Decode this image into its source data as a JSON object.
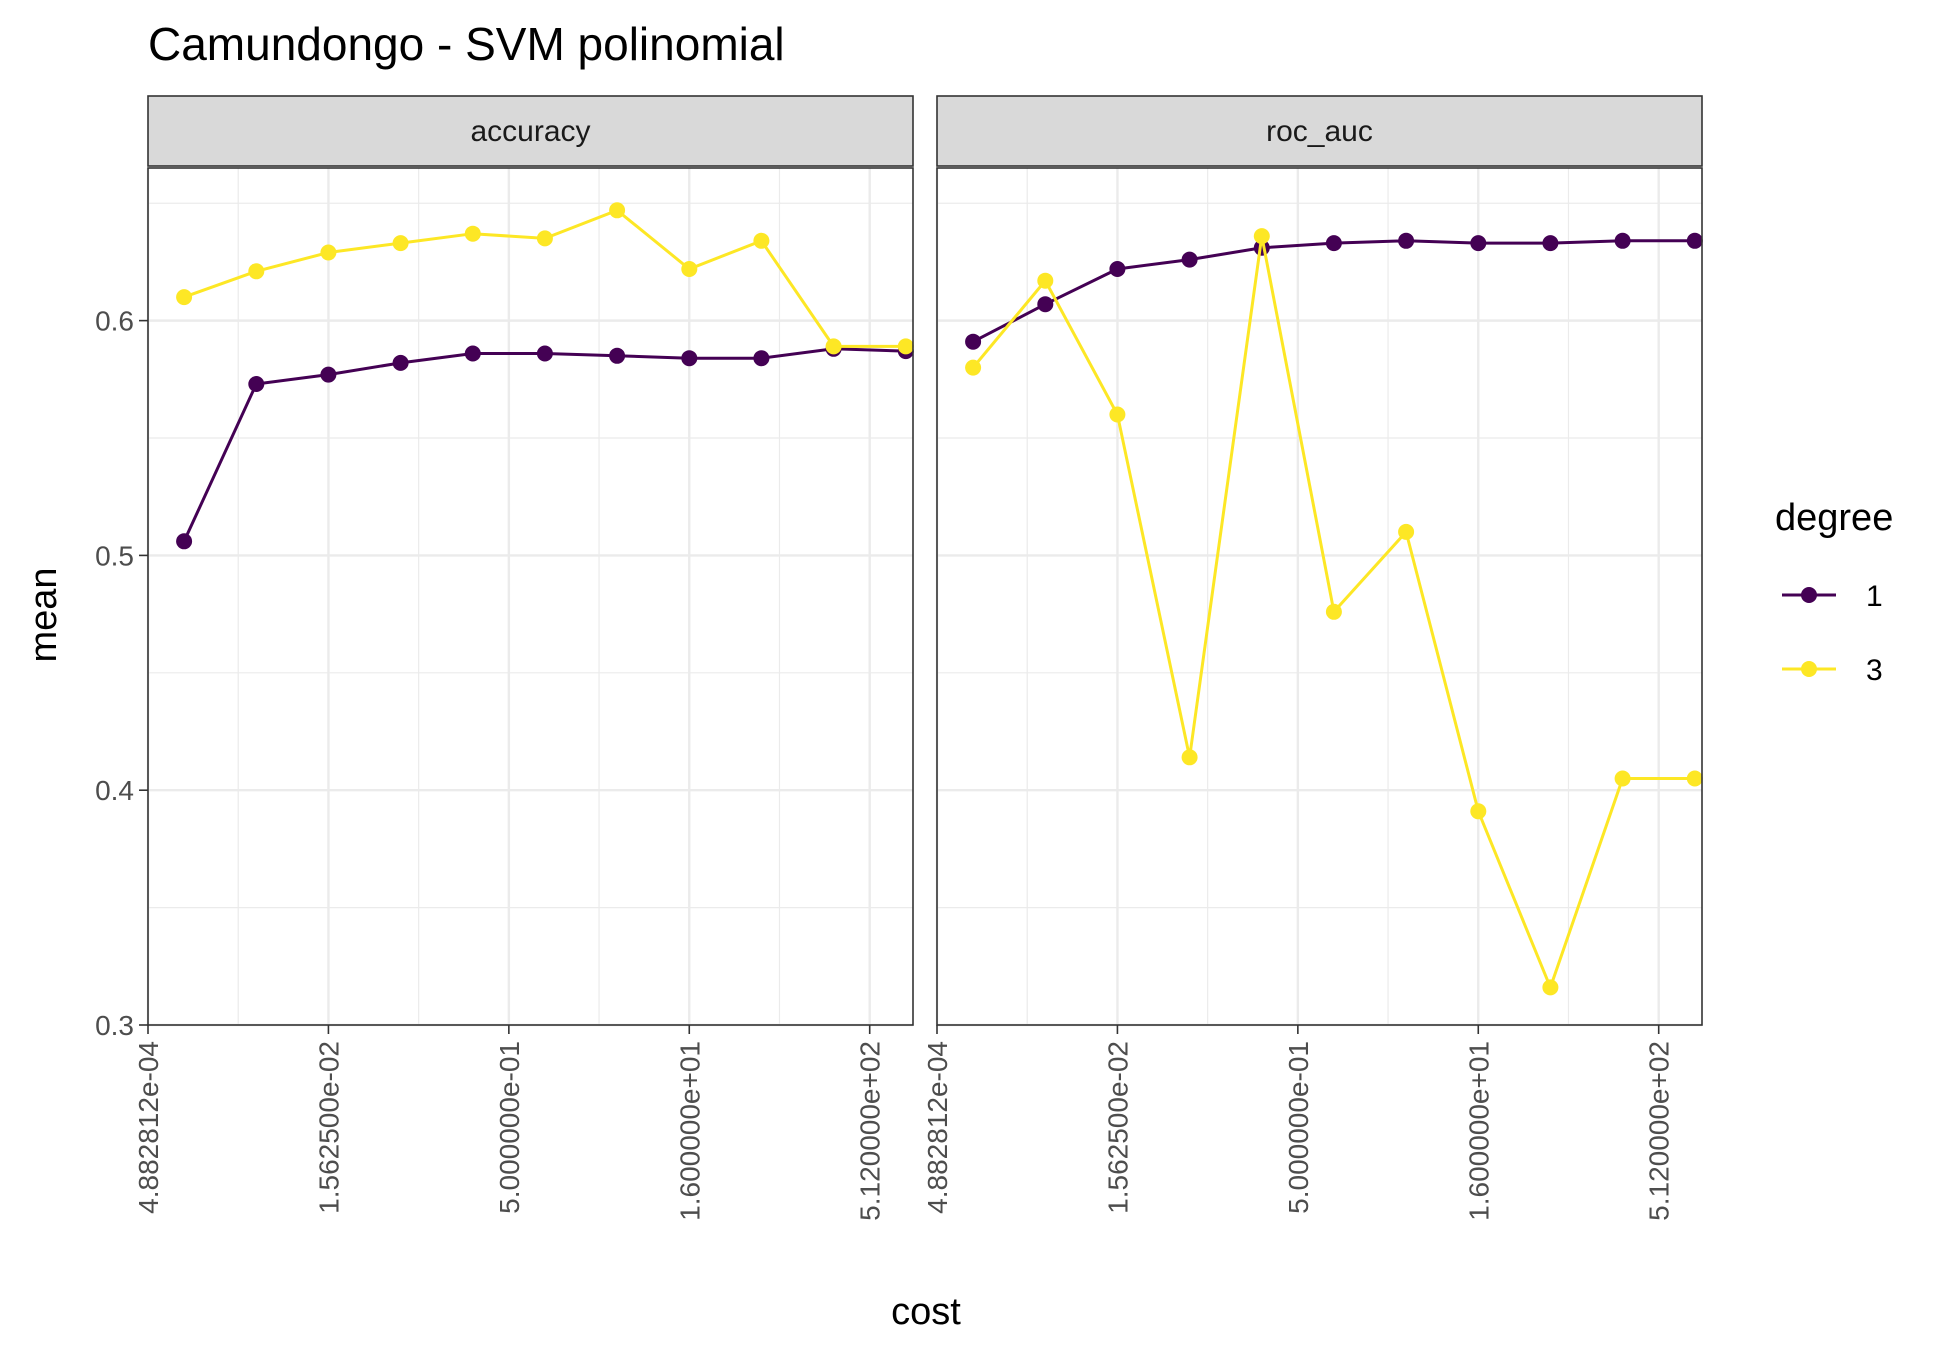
{
  "chart_data": {
    "type": "line",
    "title": "Camundongo - SVM polinomial",
    "xlabel": "cost",
    "ylabel": "mean",
    "x_scale": "log2",
    "x": [
      0.0009765625,
      0.00390625,
      0.015625,
      0.0625,
      0.25,
      1,
      4,
      16,
      64,
      256,
      1024
    ],
    "x_tick_labels": [
      "4.882812e-04",
      "1.562500e-02",
      "5.000000e-01",
      "1.600000e+01",
      "5.120000e+02"
    ],
    "x_ticks": [
      0.00048828125,
      0.015625,
      0.5,
      16,
      512
    ],
    "y_tick_labels": [
      "0.3",
      "0.4",
      "0.5",
      "0.6"
    ],
    "y_ticks": [
      0.3,
      0.4,
      0.5,
      0.6
    ],
    "ylim": [
      0.3,
      0.665
    ],
    "grid": true,
    "legend": {
      "title": "degree",
      "position": "right",
      "labels": [
        "1",
        "3"
      ]
    },
    "colors": {
      "degree_1": "#440154",
      "degree_3": "#FDE725",
      "strip_fill": "#D9D9D9",
      "grid": "#EBEBEB",
      "panel_border": "#333333"
    },
    "panels": [
      {
        "strip": "accuracy",
        "series": [
          {
            "name": "1",
            "values": [
              0.506,
              0.573,
              0.577,
              0.582,
              0.586,
              0.586,
              0.585,
              0.584,
              0.584,
              0.588,
              0.587
            ]
          },
          {
            "name": "3",
            "values": [
              0.61,
              0.621,
              0.629,
              0.633,
              0.637,
              0.635,
              0.647,
              0.622,
              0.634,
              0.589,
              0.589
            ]
          }
        ]
      },
      {
        "strip": "roc_auc",
        "series": [
          {
            "name": "1",
            "values": [
              0.591,
              0.607,
              0.622,
              0.626,
              0.631,
              0.633,
              0.634,
              0.633,
              0.633,
              0.634,
              0.634
            ]
          },
          {
            "name": "3",
            "values": [
              0.58,
              0.617,
              0.56,
              0.414,
              0.636,
              0.476,
              0.51,
              0.391,
              0.316,
              0.405,
              0.405
            ]
          }
        ]
      }
    ]
  }
}
